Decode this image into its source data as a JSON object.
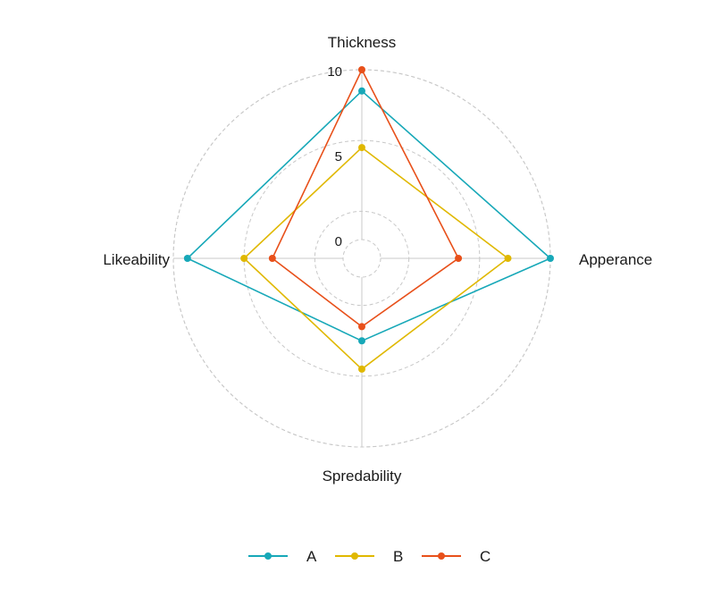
{
  "chart_data": {
    "type": "radar",
    "axes": [
      "Thickness",
      "Apperance",
      "Spredability",
      "Likeability"
    ],
    "r_ticks": [
      0,
      5,
      10
    ],
    "r_range": [
      -2,
      10
    ],
    "grid": "dashed-circles",
    "legend_position": "bottom",
    "series": [
      {
        "name": "A",
        "color": "#17a8b8",
        "values": [
          8.5,
          10,
          2.5,
          9
        ]
      },
      {
        "name": "B",
        "color": "#e0b800",
        "values": [
          4.5,
          7,
          4.5,
          5
        ]
      },
      {
        "name": "C",
        "color": "#e8501a",
        "values": [
          10,
          3.5,
          1.5,
          3
        ]
      }
    ]
  }
}
